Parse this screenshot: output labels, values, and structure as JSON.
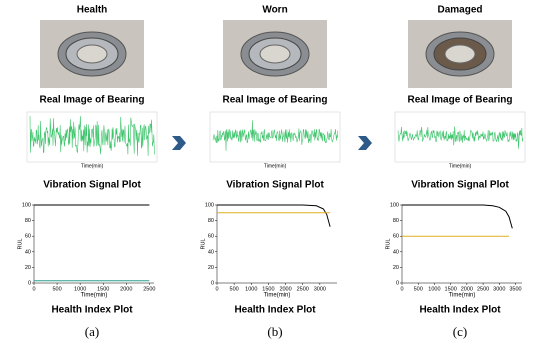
{
  "columns": [
    {
      "title": "Health",
      "image_caption": "Real Image of Bearing",
      "signal_xlabel": "Time(min)",
      "signal_caption": "Vibration Signal Plot",
      "hi": {
        "ylabel": "RUL",
        "xlabel": "Time(min)",
        "xlim": [
          0,
          2600
        ],
        "ylim": [
          0,
          100
        ],
        "xticks": [
          0,
          500,
          1000,
          1500,
          2000,
          2500
        ],
        "yticks": [
          0,
          20,
          40,
          60,
          80,
          100
        ],
        "series": [
          {
            "color": "#000000",
            "x": [
              0,
              2500
            ],
            "values": [
              100,
              100
            ]
          },
          {
            "color": "#2a9d8f",
            "x": [
              0,
              2500
            ],
            "values": [
              3,
              3
            ]
          }
        ]
      },
      "hi_caption": "Health Index Plot",
      "label": "(a)"
    },
    {
      "title": "Worn",
      "image_caption": "Real Image of Bearing",
      "signal_xlabel": "Time(min)",
      "signal_caption": "Vibration Signal Plot",
      "hi": {
        "ylabel": "RUL",
        "xlabel": "Time(min)",
        "xlim": [
          0,
          3500
        ],
        "ylim": [
          0,
          100
        ],
        "xticks": [
          0,
          500,
          1000,
          1500,
          2000,
          2500,
          3000
        ],
        "yticks": [
          0,
          20,
          40,
          60,
          80,
          100
        ],
        "series": [
          {
            "color": "#000000",
            "x": [
              0,
              500,
              1000,
              1500,
              2000,
              2500,
              2900,
              3100,
              3200,
              3300
            ],
            "values": [
              100,
              100,
              100,
              100,
              100,
              100,
              99,
              95,
              88,
              72
            ]
          },
          {
            "color": "#e0b020",
            "x": [
              0,
              3300
            ],
            "values": [
              90,
              90
            ]
          }
        ]
      },
      "hi_caption": "Health Index Plot",
      "label": "(b)"
    },
    {
      "title": "Damaged",
      "image_caption": "Real Image of Bearing",
      "signal_xlabel": "Time(min)",
      "signal_caption": "Vibration Signal Plot",
      "hi": {
        "ylabel": "RUL",
        "xlabel": "Time(min)",
        "xlim": [
          0,
          3700
        ],
        "ylim": [
          0,
          100
        ],
        "xticks": [
          0,
          500,
          1000,
          1500,
          2000,
          2500,
          3000,
          3500
        ],
        "yticks": [
          0,
          20,
          40,
          60,
          80,
          100
        ],
        "series": [
          {
            "color": "#000000",
            "x": [
              0,
              500,
              1000,
              1500,
              2000,
              2500,
              2800,
              3000,
              3200,
              3300,
              3400
            ],
            "values": [
              100,
              100,
              100,
              100,
              100,
              100,
              99,
              97,
              92,
              85,
              70
            ]
          },
          {
            "color": "#e0b020",
            "x": [
              0,
              3300
            ],
            "values": [
              60,
              60
            ]
          }
        ]
      },
      "hi_caption": "Health Index Plot",
      "label": "(c)"
    }
  ]
}
